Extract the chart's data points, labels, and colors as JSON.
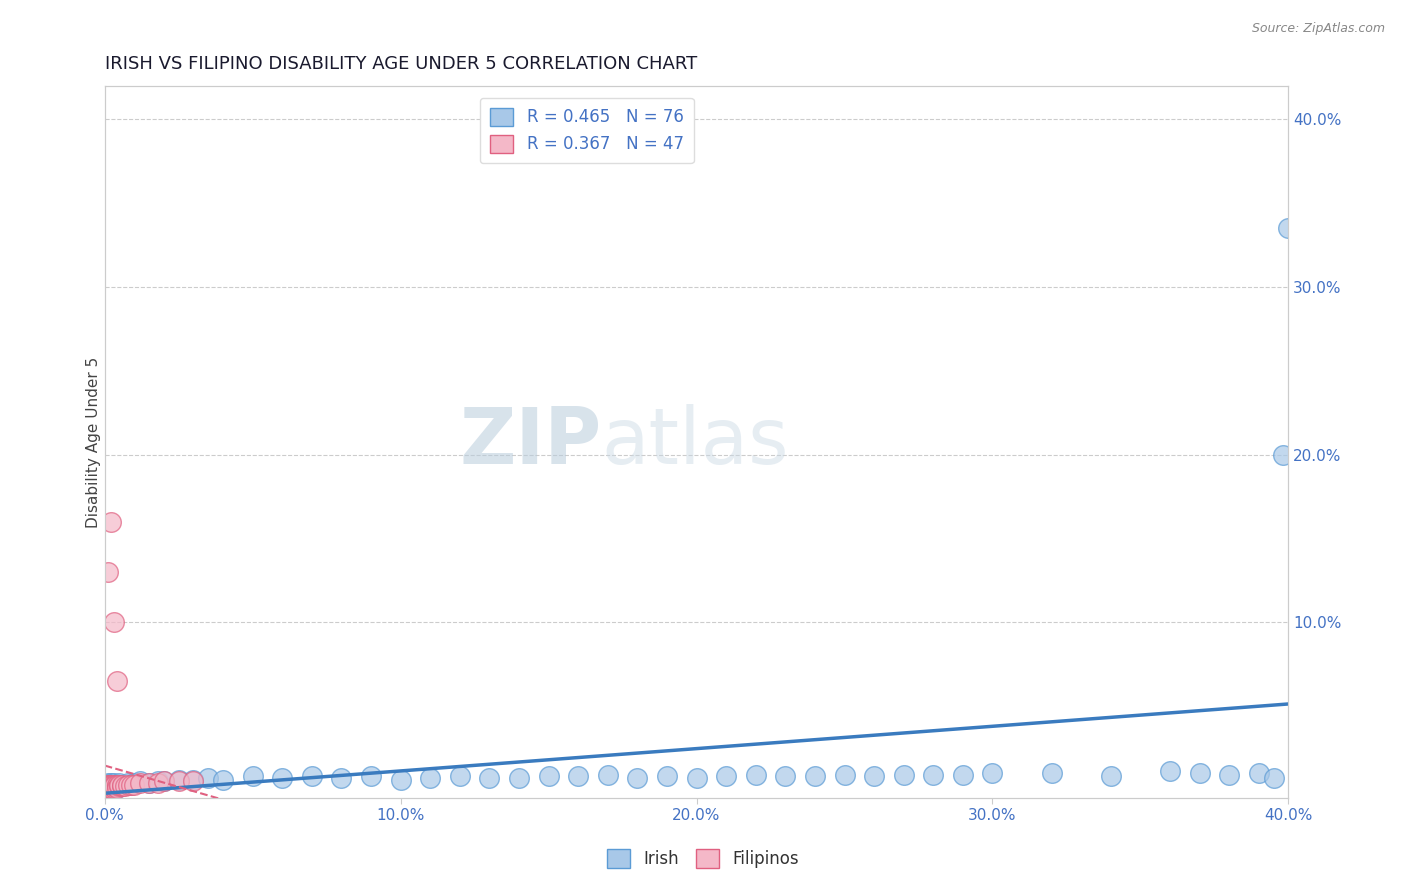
{
  "title": "IRISH VS FILIPINO DISABILITY AGE UNDER 5 CORRELATION CHART",
  "source": "Source: ZipAtlas.com",
  "ylabel": "Disability Age Under 5",
  "xmin": 0.0,
  "xmax": 0.4,
  "ymin": -0.005,
  "ymax": 0.42,
  "irish_R": 0.465,
  "irish_N": 76,
  "filipino_R": 0.367,
  "filipino_N": 47,
  "irish_color": "#a8c8e8",
  "irish_edge_color": "#5b9bd5",
  "filipino_color": "#f4b8c8",
  "filipino_edge_color": "#e06080",
  "irish_line_color": "#3a7bbf",
  "filipino_line_color": "#e06080",
  "watermark_zip_color": "#c8d8e8",
  "watermark_atlas_color": "#b8ccd8",
  "grid_color": "#cccccc",
  "tick_color": "#4472c4",
  "title_color": "#1a1a2e",
  "ylabel_color": "#444444",
  "source_color": "#888888",
  "irish_scatter_x": [
    0.001,
    0.001,
    0.001,
    0.001,
    0.001,
    0.001,
    0.001,
    0.001,
    0.001,
    0.001,
    0.002,
    0.002,
    0.002,
    0.002,
    0.002,
    0.002,
    0.002,
    0.003,
    0.003,
    0.003,
    0.003,
    0.004,
    0.004,
    0.004,
    0.005,
    0.005,
    0.005,
    0.006,
    0.006,
    0.007,
    0.008,
    0.009,
    0.01,
    0.012,
    0.015,
    0.018,
    0.02,
    0.025,
    0.03,
    0.035,
    0.04,
    0.05,
    0.06,
    0.07,
    0.08,
    0.09,
    0.1,
    0.11,
    0.12,
    0.13,
    0.14,
    0.15,
    0.16,
    0.17,
    0.18,
    0.19,
    0.2,
    0.21,
    0.22,
    0.23,
    0.24,
    0.25,
    0.26,
    0.27,
    0.28,
    0.29,
    0.3,
    0.32,
    0.34,
    0.36,
    0.37,
    0.38,
    0.39,
    0.395,
    0.398,
    0.4
  ],
  "irish_scatter_y": [
    0.001,
    0.002,
    0.003,
    0.001,
    0.004,
    0.002,
    0.001,
    0.003,
    0.001,
    0.002,
    0.002,
    0.003,
    0.001,
    0.004,
    0.002,
    0.003,
    0.001,
    0.002,
    0.003,
    0.001,
    0.004,
    0.002,
    0.003,
    0.001,
    0.003,
    0.002,
    0.004,
    0.003,
    0.002,
    0.003,
    0.004,
    0.003,
    0.004,
    0.005,
    0.004,
    0.005,
    0.005,
    0.006,
    0.006,
    0.007,
    0.006,
    0.008,
    0.007,
    0.008,
    0.007,
    0.008,
    0.006,
    0.007,
    0.008,
    0.007,
    0.007,
    0.008,
    0.008,
    0.009,
    0.007,
    0.008,
    0.007,
    0.008,
    0.009,
    0.008,
    0.008,
    0.009,
    0.008,
    0.009,
    0.009,
    0.009,
    0.01,
    0.01,
    0.008,
    0.011,
    0.01,
    0.009,
    0.01,
    0.007,
    0.2,
    0.335
  ],
  "filipino_scatter_x": [
    0.001,
    0.001,
    0.001,
    0.001,
    0.001,
    0.001,
    0.001,
    0.001,
    0.001,
    0.001,
    0.001,
    0.001,
    0.001,
    0.001,
    0.001,
    0.002,
    0.002,
    0.002,
    0.002,
    0.002,
    0.002,
    0.002,
    0.003,
    0.003,
    0.003,
    0.003,
    0.004,
    0.004,
    0.004,
    0.005,
    0.005,
    0.006,
    0.006,
    0.007,
    0.008,
    0.009,
    0.01,
    0.012,
    0.015,
    0.018,
    0.02,
    0.025,
    0.03,
    0.001,
    0.002,
    0.003,
    0.004
  ],
  "filipino_scatter_y": [
    0.001,
    0.001,
    0.002,
    0.001,
    0.002,
    0.001,
    0.003,
    0.001,
    0.002,
    0.001,
    0.002,
    0.001,
    0.003,
    0.001,
    0.002,
    0.002,
    0.001,
    0.003,
    0.002,
    0.001,
    0.003,
    0.002,
    0.002,
    0.001,
    0.003,
    0.002,
    0.002,
    0.003,
    0.001,
    0.002,
    0.003,
    0.002,
    0.003,
    0.002,
    0.003,
    0.003,
    0.003,
    0.004,
    0.004,
    0.004,
    0.005,
    0.005,
    0.005,
    0.13,
    0.16,
    0.1,
    0.065
  ]
}
